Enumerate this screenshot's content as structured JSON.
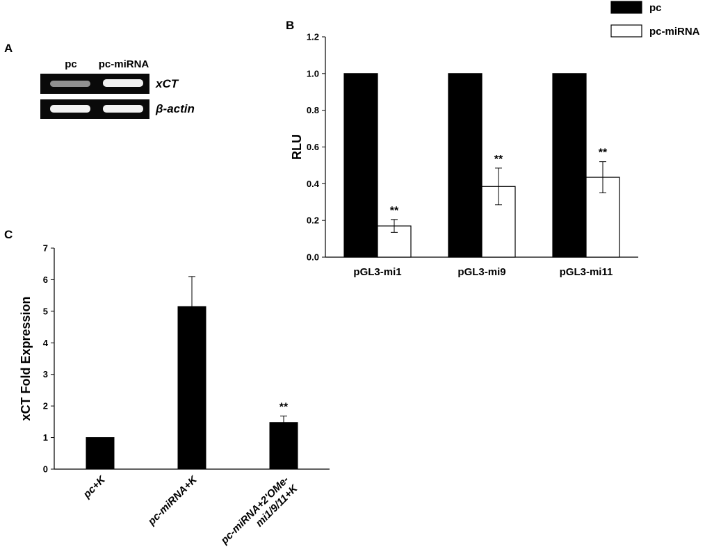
{
  "panels": {
    "a": {
      "letter": "A",
      "lanes": [
        "pc",
        "pc-miRNA"
      ],
      "rows": [
        {
          "gene": "xCT",
          "intensities": [
            0.55,
            0.95
          ]
        },
        {
          "gene": "β-actin",
          "intensities": [
            0.95,
            0.95
          ]
        }
      ]
    },
    "b": {
      "letter": "B"
    },
    "c": {
      "letter": "C"
    }
  },
  "chart_data": [
    {
      "panel": "B",
      "type": "bar",
      "categories": [
        "pGL3-mi1",
        "pGL3-mi9",
        "pGL3-mi11"
      ],
      "series": [
        {
          "name": "pc",
          "color": "#000000",
          "values": [
            1.0,
            1.0,
            1.0
          ]
        },
        {
          "name": "pc-miRNA",
          "color": "#ffffff",
          "values": [
            0.17,
            0.385,
            0.435
          ],
          "errors": [
            0.035,
            0.1,
            0.085
          ],
          "significance": [
            "**",
            "**",
            "**"
          ]
        }
      ],
      "ylabel": "RLU",
      "ylim": [
        0,
        1.2
      ],
      "yticks": [
        "0.0",
        "0.2",
        "0.4",
        "0.6",
        "0.8",
        "1.0",
        "1.2"
      ],
      "legend_position": "top-right",
      "grid": false
    },
    {
      "panel": "C",
      "type": "bar",
      "categories": [
        "pc+K",
        "pc-miRNA+K",
        "pc-miRNA+2'OMe-mi1/9/11+K"
      ],
      "category_lines": [
        [
          "pc+K"
        ],
        [
          "pc-miRNA+K"
        ],
        [
          "pc-miRNA+2'OMe-",
          "mi1/9/11+K"
        ]
      ],
      "series": [
        {
          "name": "",
          "color": "#000000",
          "values": [
            1.0,
            5.15,
            1.48
          ],
          "errors": [
            0,
            0.95,
            0.2
          ],
          "significance": [
            "",
            "",
            "**"
          ]
        }
      ],
      "ylabel": "xCT Fold Expression",
      "ylim": [
        0,
        7
      ],
      "yticks": [
        "0",
        "1",
        "2",
        "3",
        "4",
        "5",
        "6",
        "7"
      ],
      "grid": false
    }
  ]
}
